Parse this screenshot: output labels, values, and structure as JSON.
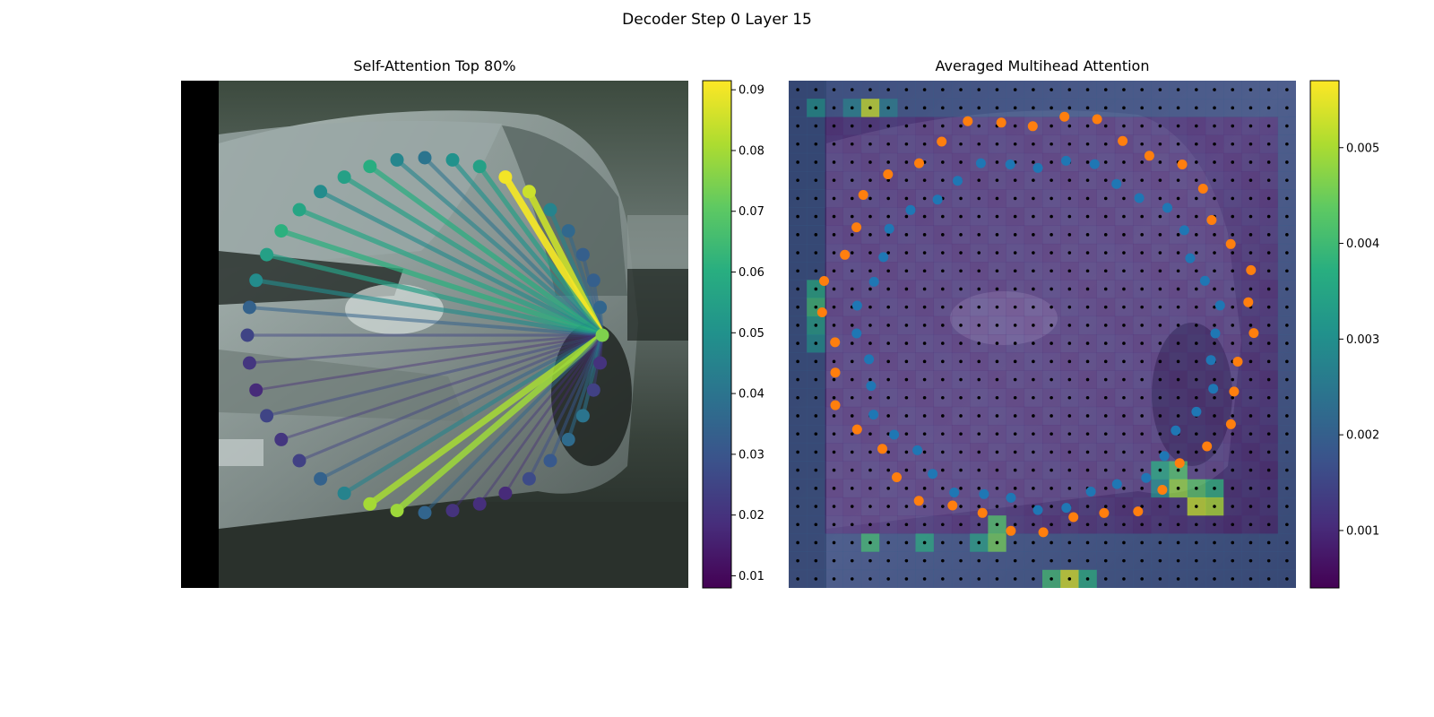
{
  "figure": {
    "suptitle": "Decoder Step 0 Layer 15"
  },
  "panels": {
    "left": {
      "title": "Self-Attention Top 80%",
      "colorbar": {
        "colormap": "viridis",
        "min": 0.008,
        "max": 0.0915,
        "ticks": [
          "0.01",
          "0.02",
          "0.03",
          "0.04",
          "0.05",
          "0.06",
          "0.07",
          "0.08",
          "0.09"
        ]
      }
    },
    "right": {
      "title": "Averaged Multihead Attention",
      "colorbar": {
        "colormap": "viridis",
        "min": 0.0004,
        "max": 0.0057,
        "ticks": [
          "0.001",
          "0.002",
          "0.003",
          "0.004",
          "0.005"
        ]
      }
    }
  },
  "colors": {
    "orange_points": "#ff7f0e",
    "blue_points": "#1f77b4",
    "grid_dots": "#000000"
  },
  "chart_data": [
    {
      "type": "scatter",
      "title": "Self-Attention Top 80%",
      "description_type": "attention-ring",
      "query_index": 0,
      "points": 40,
      "values": [
        0.075,
        0.035,
        0.033,
        0.033,
        0.036,
        0.045,
        0.085,
        0.09,
        0.055,
        0.05,
        0.04,
        0.046,
        0.06,
        0.055,
        0.048,
        0.057,
        0.061,
        0.055,
        0.048,
        0.034,
        0.025,
        0.021,
        0.018,
        0.025,
        0.021,
        0.024,
        0.034,
        0.045,
        0.08,
        0.079,
        0.035,
        0.02,
        0.019,
        0.018,
        0.027,
        0.031,
        0.037,
        0.04,
        0.024,
        0.02
      ],
      "xlim": [
        0,
        1
      ],
      "ylim": [
        0,
        1
      ]
    },
    {
      "type": "heatmap",
      "title": "Averaged Multihead Attention",
      "rows": 28,
      "cols": 28,
      "background_level": 0.0011,
      "hot_cells": [
        {
          "r": 1,
          "c": 4,
          "v": 0.0052
        },
        {
          "r": 1,
          "c": 1,
          "v": 0.0031
        },
        {
          "r": 1,
          "c": 3,
          "v": 0.0028
        },
        {
          "r": 1,
          "c": 5,
          "v": 0.0027
        },
        {
          "r": 11,
          "c": 1,
          "v": 0.0036
        },
        {
          "r": 12,
          "c": 1,
          "v": 0.004
        },
        {
          "r": 13,
          "c": 1,
          "v": 0.0034
        },
        {
          "r": 14,
          "c": 1,
          "v": 0.003
        },
        {
          "r": 21,
          "c": 20,
          "v": 0.0036
        },
        {
          "r": 21,
          "c": 21,
          "v": 0.0042
        },
        {
          "r": 22,
          "c": 21,
          "v": 0.0048
        },
        {
          "r": 23,
          "c": 22,
          "v": 0.0052
        },
        {
          "r": 23,
          "c": 23,
          "v": 0.005
        },
        {
          "r": 22,
          "c": 22,
          "v": 0.0043
        },
        {
          "r": 22,
          "c": 23,
          "v": 0.0038
        },
        {
          "r": 22,
          "c": 20,
          "v": 0.003
        },
        {
          "r": 24,
          "c": 11,
          "v": 0.0042
        },
        {
          "r": 25,
          "c": 11,
          "v": 0.0045
        },
        {
          "r": 25,
          "c": 4,
          "v": 0.004
        },
        {
          "r": 25,
          "c": 7,
          "v": 0.0036
        },
        {
          "r": 25,
          "c": 10,
          "v": 0.0034
        },
        {
          "r": 27,
          "c": 15,
          "v": 0.0053
        },
        {
          "r": 27,
          "c": 14,
          "v": 0.004
        },
        {
          "r": 27,
          "c": 16,
          "v": 0.0037
        }
      ],
      "overlay_series": [
        {
          "name": "",
          "color": "#ff7f0e",
          "points": 42
        },
        {
          "name": "",
          "color": "#1f77b4",
          "points": 40
        }
      ]
    }
  ]
}
